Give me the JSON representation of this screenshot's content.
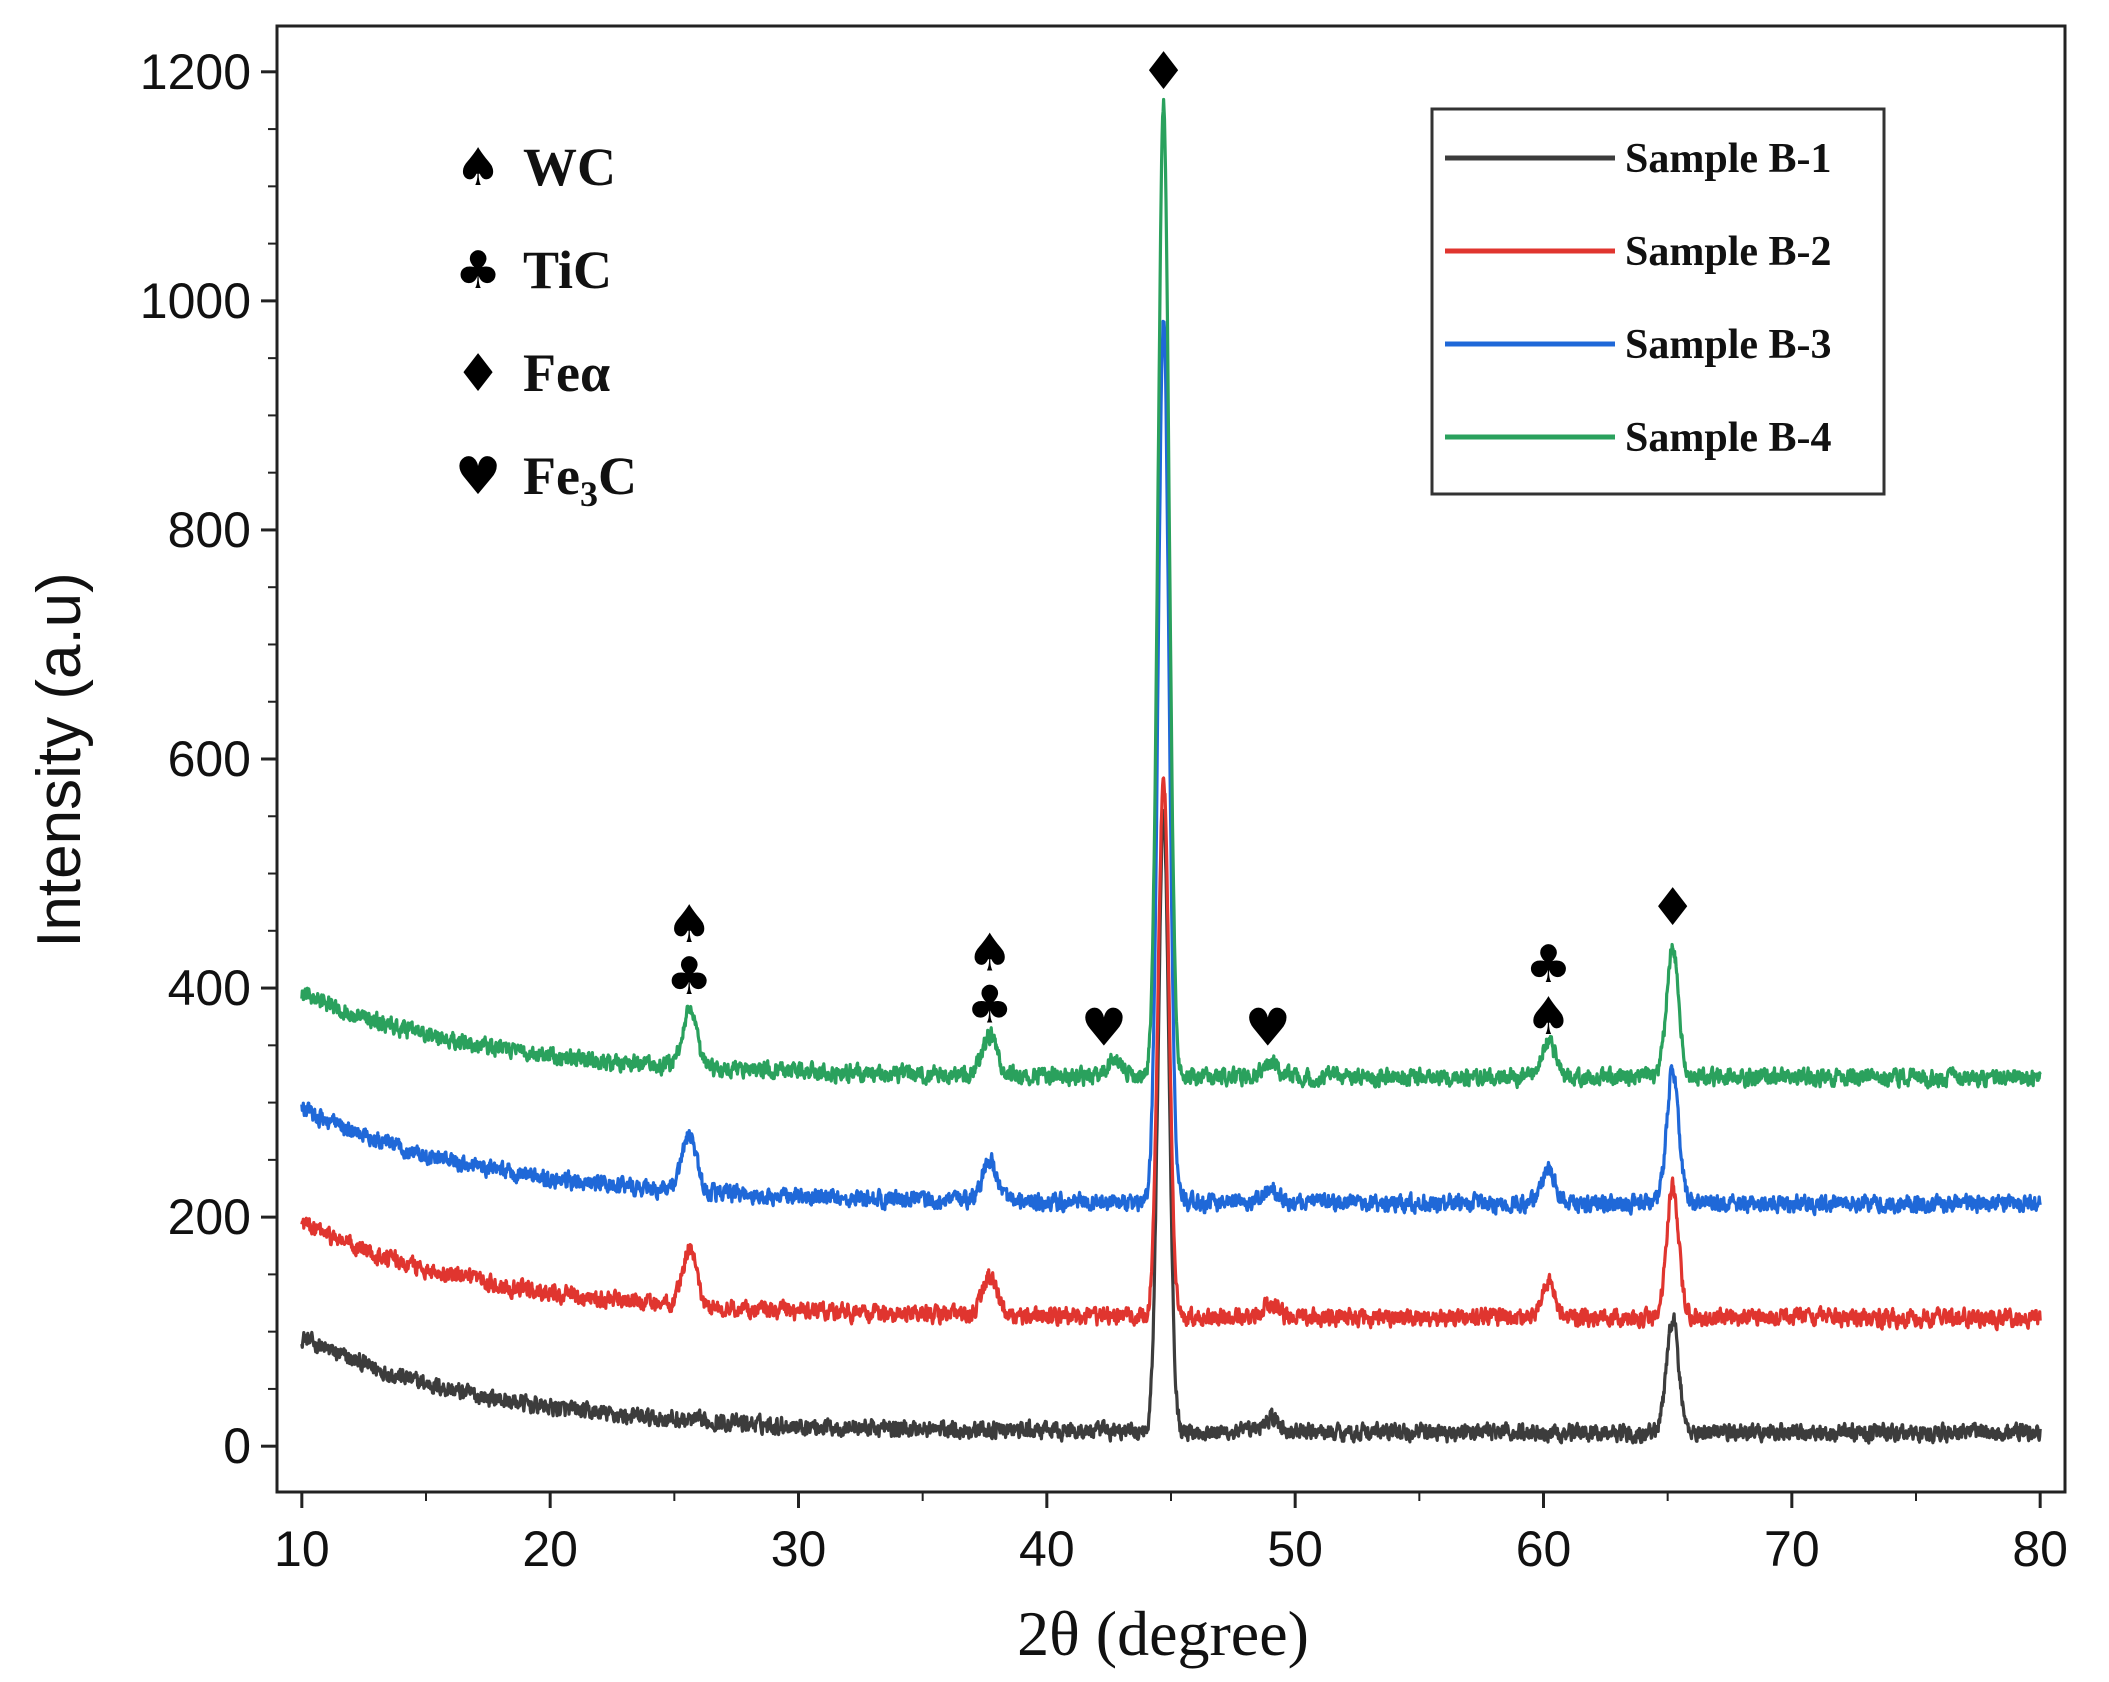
{
  "chart_data": {
    "type": "line",
    "xlabel": "2θ (degree)",
    "ylabel": "Intensity (a.u)",
    "xlim": [
      9,
      81
    ],
    "ylim": [
      -40,
      1240
    ],
    "xticks": [
      10,
      20,
      30,
      40,
      50,
      60,
      70,
      80
    ],
    "yticks": [
      0,
      200,
      400,
      600,
      800,
      1000,
      1200
    ],
    "grid": false,
    "legend_position": "top-right",
    "peaks": [
      {
        "x": 25.6,
        "width": 0.28,
        "heights": [
          0,
          50,
          50,
          50
        ]
      },
      {
        "x": 37.7,
        "width": 0.3,
        "heights": [
          0,
          35,
          35,
          35
        ]
      },
      {
        "x": 42.8,
        "width": 0.3,
        "heights": [
          0,
          0,
          0,
          15
        ]
      },
      {
        "x": 44.7,
        "width": 0.22,
        "heights": [
          540,
          470,
          770,
          850
        ]
      },
      {
        "x": 49.0,
        "width": 0.3,
        "heights": [
          12,
          12,
          12,
          12
        ]
      },
      {
        "x": 60.2,
        "width": 0.28,
        "heights": [
          0,
          30,
          30,
          30
        ]
      },
      {
        "x": 65.2,
        "width": 0.24,
        "heights": [
          100,
          115,
          115,
          115
        ]
      }
    ],
    "series": [
      {
        "name": "Sample B-1",
        "color": "#3c3c3c",
        "offset": 0,
        "x": [
          10,
          15,
          20,
          25,
          30,
          35,
          40,
          44.7,
          50,
          55,
          60,
          65.2,
          70,
          75,
          80
        ],
        "y": [
          95,
          55,
          40,
          28,
          22,
          18,
          18,
          560,
          15,
          12,
          12,
          115,
          12,
          12,
          12
        ]
      },
      {
        "name": "Sample B-2",
        "color": "#e0352f",
        "offset": 100,
        "x": [
          10,
          15,
          20,
          25,
          25.6,
          30,
          35,
          37.7,
          40,
          44.7,
          50,
          55,
          60.2,
          65.2,
          70,
          75,
          80
        ],
        "y": [
          195,
          155,
          140,
          128,
          175,
          122,
          118,
          150,
          118,
          590,
          115,
          112,
          142,
          230,
          112,
          112,
          112
        ]
      },
      {
        "name": "Sample B-3",
        "color": "#1f68d8",
        "offset": 200,
        "x": [
          10,
          15,
          20,
          25,
          25.6,
          30,
          35,
          37.7,
          40,
          44.7,
          50,
          55,
          60.2,
          65.2,
          70,
          75,
          80
        ],
        "y": [
          295,
          255,
          240,
          228,
          275,
          222,
          218,
          250,
          218,
          990,
          215,
          212,
          242,
          330,
          212,
          212,
          212
        ]
      },
      {
        "name": "Sample B-4",
        "color": "#2aa15d",
        "offset": 310,
        "x": [
          10,
          15,
          20,
          25,
          25.6,
          30,
          35,
          37.7,
          42.8,
          44.7,
          49.0,
          55,
          60.2,
          65.2,
          70,
          75,
          80
        ],
        "y": [
          395,
          355,
          340,
          330,
          375,
          325,
          320,
          350,
          330,
          1170,
          325,
          315,
          345,
          430,
          315,
          315,
          315
        ]
      }
    ],
    "phase_legend": [
      {
        "symbol": "♠",
        "label": "WC"
      },
      {
        "symbol": "♣",
        "label": "TiC"
      },
      {
        "symbol": "♦",
        "label": "Feα"
      },
      {
        "symbol": "♥",
        "label_base": "Fe",
        "label_sub": "3",
        "label_tail": "C"
      }
    ],
    "annotations": [
      {
        "x": 25.6,
        "y": 395,
        "symbols": [
          "♠",
          "♣"
        ]
      },
      {
        "x": 37.7,
        "y": 370,
        "symbols": [
          "♠",
          "♣"
        ]
      },
      {
        "x": 42.3,
        "y": 350,
        "symbols": [
          "♥"
        ]
      },
      {
        "x": 48.9,
        "y": 350,
        "symbols": [
          "♥"
        ]
      },
      {
        "x": 44.7,
        "y": 1185,
        "symbols": [
          "♦"
        ]
      },
      {
        "x": 60.2,
        "y": 360,
        "symbols": [
          "♣",
          "♠"
        ]
      },
      {
        "x": 65.2,
        "y": 455,
        "symbols": [
          "♦"
        ]
      }
    ]
  }
}
